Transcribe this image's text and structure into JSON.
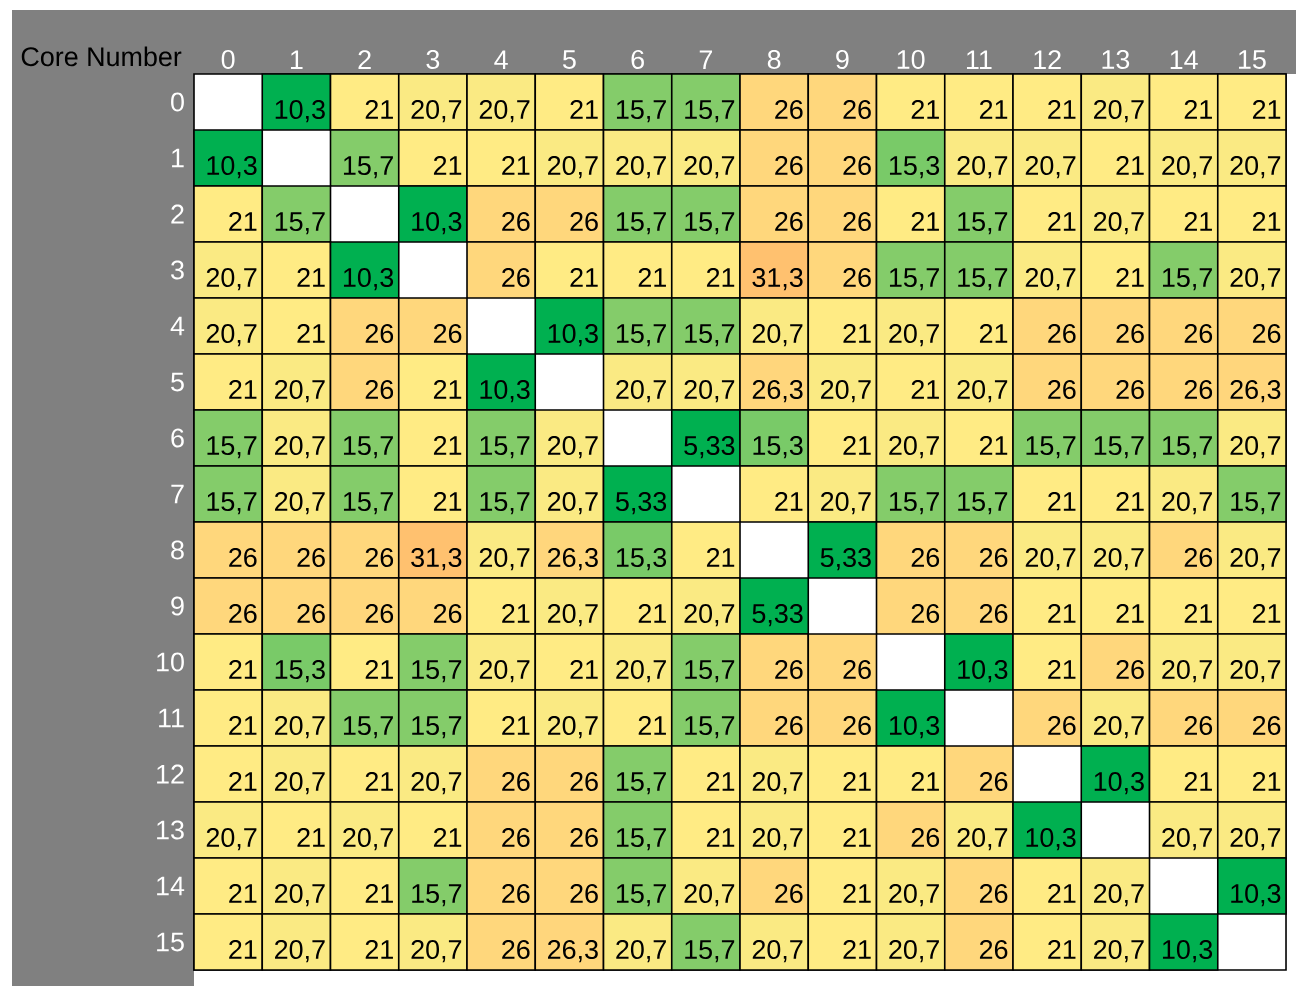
{
  "chart_data": {
    "type": "heatmap",
    "title": "Core Number",
    "categories": [
      "0",
      "1",
      "2",
      "3",
      "4",
      "5",
      "6",
      "7",
      "8",
      "9",
      "10",
      "11",
      "12",
      "13",
      "14",
      "15"
    ],
    "y_categories": [
      "0",
      "1",
      "2",
      "3",
      "4",
      "5",
      "6",
      "7",
      "8",
      "9",
      "10",
      "11",
      "12",
      "13",
      "14",
      "15"
    ],
    "cells": [
      [
        null,
        10.3,
        21,
        20.7,
        20.7,
        21,
        15.7,
        15.7,
        26,
        26,
        21,
        21,
        21,
        20.7,
        21,
        21
      ],
      [
        10.3,
        null,
        15.7,
        21,
        21,
        20.7,
        20.7,
        20.7,
        26,
        26,
        15.3,
        20.7,
        20.7,
        21,
        20.7,
        20.7
      ],
      [
        21,
        15.7,
        null,
        10.3,
        26,
        26,
        15.7,
        15.7,
        26,
        26,
        21,
        15.7,
        21,
        20.7,
        21,
        21
      ],
      [
        20.7,
        21,
        10.3,
        null,
        26,
        21,
        21,
        21,
        31.3,
        26,
        15.7,
        15.7,
        20.7,
        21,
        15.7,
        20.7
      ],
      [
        20.7,
        21,
        26,
        26,
        null,
        10.3,
        15.7,
        15.7,
        20.7,
        21,
        20.7,
        21,
        26,
        26,
        26,
        26
      ],
      [
        21,
        20.7,
        26,
        21,
        10.3,
        null,
        20.7,
        20.7,
        26.3,
        20.7,
        21,
        20.7,
        26,
        26,
        26,
        26.3
      ],
      [
        15.7,
        20.7,
        15.7,
        21,
        15.7,
        20.7,
        null,
        5.33,
        15.3,
        21,
        20.7,
        21,
        15.7,
        15.7,
        15.7,
        20.7
      ],
      [
        15.7,
        20.7,
        15.7,
        21,
        15.7,
        20.7,
        5.33,
        null,
        21,
        20.7,
        15.7,
        15.7,
        21,
        21,
        20.7,
        15.7
      ],
      [
        26,
        26,
        26,
        31.3,
        20.7,
        26.3,
        15.3,
        21,
        null,
        5.33,
        26,
        26,
        20.7,
        20.7,
        26,
        20.7
      ],
      [
        26,
        26,
        26,
        26,
        21,
        20.7,
        21,
        20.7,
        5.33,
        null,
        26,
        26,
        21,
        21,
        21,
        21
      ],
      [
        21,
        15.3,
        21,
        15.7,
        20.7,
        21,
        20.7,
        15.7,
        26,
        26,
        null,
        10.3,
        21,
        26,
        20.7,
        20.7
      ],
      [
        21,
        20.7,
        15.7,
        15.7,
        21,
        20.7,
        21,
        15.7,
        26,
        26,
        10.3,
        null,
        26,
        20.7,
        26,
        26
      ],
      [
        21,
        20.7,
        21,
        20.7,
        26,
        26,
        15.7,
        21,
        20.7,
        21,
        21,
        26,
        null,
        10.3,
        21,
        21
      ],
      [
        20.7,
        21,
        20.7,
        21,
        26,
        26,
        15.7,
        21,
        20.7,
        21,
        26,
        20.7,
        10.3,
        null,
        20.7,
        20.7
      ],
      [
        21,
        20.7,
        21,
        15.7,
        26,
        26,
        15.7,
        20.7,
        26,
        21,
        20.7,
        26,
        21,
        20.7,
        null,
        10.3
      ],
      [
        21,
        20.7,
        21,
        20.7,
        26,
        26.3,
        20.7,
        15.7,
        20.7,
        21,
        20.7,
        26,
        21,
        20.7,
        10.3,
        null
      ]
    ],
    "cell_labels": [
      [
        null,
        "10,3",
        "21",
        "20,7",
        "20,7",
        "21",
        "15,7",
        "15,7",
        "26",
        "26",
        "21",
        "21",
        "21",
        "20,7",
        "21",
        "21"
      ],
      [
        "10,3",
        null,
        "15,7",
        "21",
        "21",
        "20,7",
        "20,7",
        "20,7",
        "26",
        "26",
        "15,3",
        "20,7",
        "20,7",
        "21",
        "20,7",
        "20,7"
      ],
      [
        "21",
        "15,7",
        null,
        "10,3",
        "26",
        "26",
        "15,7",
        "15,7",
        "26",
        "26",
        "21",
        "15,7",
        "21",
        "20,7",
        "21",
        "21"
      ],
      [
        "20,7",
        "21",
        "10,3",
        null,
        "26",
        "21",
        "21",
        "21",
        "31,3",
        "26",
        "15,7",
        "15,7",
        "20,7",
        "21",
        "15,7",
        "20,7"
      ],
      [
        "20,7",
        "21",
        "26",
        "26",
        null,
        "10,3",
        "15,7",
        "15,7",
        "20,7",
        "21",
        "20,7",
        "21",
        "26",
        "26",
        "26",
        "26"
      ],
      [
        "21",
        "20,7",
        "26",
        "21",
        "10,3",
        null,
        "20,7",
        "20,7",
        "26,3",
        "20,7",
        "21",
        "20,7",
        "26",
        "26",
        "26",
        "26,3"
      ],
      [
        "15,7",
        "20,7",
        "15,7",
        "21",
        "15,7",
        "20,7",
        null,
        "5,33",
        "15,3",
        "21",
        "20,7",
        "21",
        "15,7",
        "15,7",
        "15,7",
        "20,7"
      ],
      [
        "15,7",
        "20,7",
        "15,7",
        "21",
        "15,7",
        "20,7",
        "5,33",
        null,
        "21",
        "20,7",
        "15,7",
        "15,7",
        "21",
        "21",
        "20,7",
        "15,7"
      ],
      [
        "26",
        "26",
        "26",
        "31,3",
        "20,7",
        "26,3",
        "15,3",
        "21",
        null,
        "5,33",
        "26",
        "26",
        "20,7",
        "20,7",
        "26",
        "20,7"
      ],
      [
        "26",
        "26",
        "26",
        "26",
        "21",
        "20,7",
        "21",
        "20,7",
        "5,33",
        null,
        "26",
        "26",
        "21",
        "21",
        "21",
        "21"
      ],
      [
        "21",
        "15,3",
        "21",
        "15,7",
        "20,7",
        "21",
        "20,7",
        "15,7",
        "26",
        "26",
        null,
        "10,3",
        "21",
        "26",
        "20,7",
        "20,7"
      ],
      [
        "21",
        "20,7",
        "15,7",
        "15,7",
        "21",
        "20,7",
        "21",
        "15,7",
        "26",
        "26",
        "10,3",
        null,
        "26",
        "20,7",
        "26",
        "26"
      ],
      [
        "21",
        "20,7",
        "21",
        "20,7",
        "26",
        "26",
        "15,7",
        "21",
        "20,7",
        "21",
        "21",
        "26",
        null,
        "10,3",
        "21",
        "21"
      ],
      [
        "20,7",
        "21",
        "20,7",
        "21",
        "26",
        "26",
        "15,7",
        "21",
        "20,7",
        "21",
        "26",
        "20,7",
        "10,3",
        null,
        "20,7",
        "20,7"
      ],
      [
        "21",
        "20,7",
        "21",
        "15,7",
        "26",
        "26",
        "15,7",
        "20,7",
        "26",
        "21",
        "20,7",
        "26",
        "21",
        "20,7",
        null,
        "10,3"
      ],
      [
        "21",
        "20,7",
        "21",
        "20,7",
        "26",
        "26,3",
        "20,7",
        "15,7",
        "20,7",
        "21",
        "20,7",
        "26",
        "21",
        "20,7",
        "10,3",
        null
      ]
    ],
    "colors": [
      "#00b050",
      "#00b050",
      "#00b050",
      "#42be5d",
      "#84cc6a",
      "#c2dc77",
      "#ffeb84",
      "#ffe180",
      "#ffd77c",
      "#ffcc76",
      "#ffc16f"
    ]
  }
}
